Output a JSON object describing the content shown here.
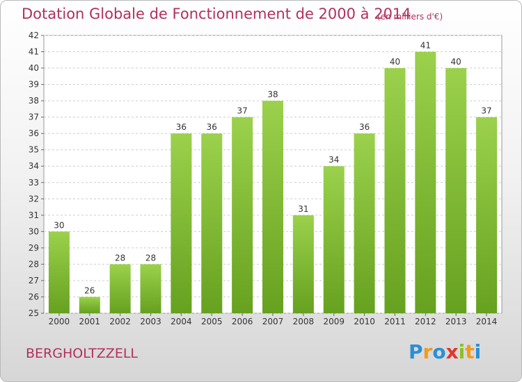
{
  "title": "Dotation Globale de Fonctionnement de 2000 à 2014",
  "subtitle": "(en milliers d'€)",
  "commune": "BERGHOLTZZELL",
  "logo": {
    "letters": [
      "P",
      "r",
      "o",
      "x",
      "i",
      "t",
      "i"
    ],
    "colors": [
      "#2a8fd6",
      "#f39a1c",
      "#2a8fd6",
      "#e4332e",
      "#8cbf2a",
      "#f39a1c",
      "#2a8fd6"
    ]
  },
  "colors": {
    "bar_light": "#9bd14c",
    "bar_dark": "#66a11f",
    "text": "#b2305c",
    "grid": "#cccccc"
  },
  "chart_data": {
    "type": "bar",
    "categories": [
      "2000",
      "2001",
      "2002",
      "2003",
      "2004",
      "2005",
      "2006",
      "2007",
      "2008",
      "2009",
      "2010",
      "2011",
      "2012",
      "2013",
      "2014"
    ],
    "values": [
      30,
      26,
      28,
      28,
      36,
      36,
      37,
      38,
      31,
      34,
      36,
      40,
      41,
      40,
      37
    ],
    "ylim": [
      25,
      42
    ],
    "yticks": [
      25,
      26,
      27,
      28,
      29,
      30,
      31,
      32,
      33,
      34,
      35,
      36,
      37,
      38,
      39,
      40,
      41,
      42
    ],
    "grid": true,
    "xlabel": "",
    "ylabel": ""
  }
}
